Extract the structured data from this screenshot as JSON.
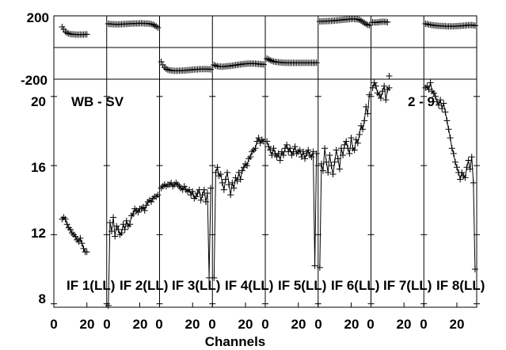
{
  "chart_data": {
    "type": "scatter",
    "title": "WB - SV",
    "annotation": "2 - 9",
    "xlabel": "Channels",
    "x_ticks": [
      "0",
      "20",
      "0",
      "20",
      "0",
      "20",
      "0",
      "20",
      "0",
      "20",
      "0",
      "20",
      "0",
      "20",
      "0",
      "20"
    ],
    "phase_panel": {
      "ylim": [
        -200,
        200
      ],
      "y_ticks": [
        "200",
        "-200"
      ]
    },
    "amp_panel": {
      "ylim": [
        7.8,
        21.0
      ],
      "y_ticks": [
        "20",
        "16",
        "12",
        "8"
      ]
    },
    "channels_per_if": 32,
    "ifs": [
      {
        "label": "IF 1(LL)",
        "start": 5,
        "phase": [
          130,
          115,
          100,
          92,
          88,
          85,
          84,
          83,
          82,
          82,
          82,
          82,
          82,
          82,
          83,
          83
        ],
        "amp": [
          12.9,
          13.0,
          12.9,
          12.6,
          12.4,
          12.3,
          12.1,
          12.0,
          11.9,
          11.7,
          11.6,
          11.8,
          11.5,
          11.2,
          11.0,
          11.0
        ]
      },
      {
        "label": "IF 2(LL)",
        "start": 1,
        "phase": [
          150,
          148,
          148,
          147,
          147,
          146,
          146,
          147,
          147,
          148,
          148,
          149,
          150,
          150,
          151,
          151,
          152,
          152,
          152,
          153,
          153,
          153,
          152,
          152,
          151,
          150,
          148,
          145,
          140,
          133,
          125
        ],
        "amp": [
          7.9,
          12.7,
          12.2,
          13.0,
          11.9,
          12.5,
          12.3,
          12.0,
          12.1,
          12.6,
          12.3,
          12.8,
          12.5,
          12.6,
          13.1,
          13.2,
          13.5,
          13.4,
          13.3,
          13.5,
          13.5,
          13.6,
          13.4,
          13.7,
          13.9,
          14.0,
          13.9,
          14.1,
          14.2,
          14.2,
          14.3
        ]
      },
      {
        "label": "IF 3(LL)",
        "start": 1,
        "phase": [
          -90,
          -110,
          -125,
          -135,
          -140,
          -143,
          -145,
          -146,
          -147,
          -147,
          -147,
          -146,
          -146,
          -145,
          -145,
          -144,
          -143,
          -142,
          -141,
          -140,
          -139,
          -138,
          -138,
          -137,
          -137,
          -136,
          -136,
          -136,
          -136,
          -137,
          -138
        ],
        "amp": [
          14.7,
          14.8,
          14.9,
          14.8,
          14.9,
          14.9,
          15.0,
          14.8,
          14.9,
          15.0,
          14.9,
          14.8,
          14.7,
          14.6,
          14.8,
          14.6,
          14.5,
          14.6,
          14.3,
          14.5,
          14.1,
          14.2,
          14.4,
          14.6,
          14.0,
          14.3,
          14.6,
          13.9,
          14.4,
          9.5,
          14.7
        ]
      },
      {
        "label": "IF 4(LL)",
        "start": 1,
        "phase": [
          -110,
          -115,
          -118,
          -120,
          -120,
          -121,
          -120,
          -119,
          -118,
          -117,
          -116,
          -114,
          -113,
          -111,
          -110,
          -108,
          -107,
          -105,
          -104,
          -103,
          -102,
          -101,
          -101,
          -101,
          -101,
          -102,
          -103,
          -104,
          -105,
          -106,
          -107
        ],
        "amp": [
          9.5,
          15.6,
          15.9,
          15.4,
          15.5,
          15.0,
          14.6,
          15.2,
          15.6,
          14.9,
          14.3,
          15.0,
          14.7,
          15.3,
          15.1,
          15.6,
          15.2,
          15.7,
          15.9,
          16.1,
          16.0,
          16.4,
          16.5,
          16.8,
          16.9,
          17.0,
          17.4,
          17.6,
          17.3,
          17.5,
          17.4
        ]
      },
      {
        "label": "IF 5(LL)",
        "start": 1,
        "phase": [
          -70,
          -75,
          -80,
          -85,
          -88,
          -90,
          -92,
          -93,
          -94,
          -95,
          -96,
          -96,
          -97,
          -97,
          -97,
          -97,
          -97,
          -97,
          -97,
          -97,
          -97,
          -97,
          -97,
          -97,
          -97,
          -97,
          -97,
          -97,
          -97,
          -97,
          -96
        ],
        "amp": [
          17.4,
          17.1,
          16.9,
          16.6,
          17.0,
          16.7,
          16.5,
          16.7,
          16.3,
          16.8,
          16.6,
          17.0,
          17.2,
          16.8,
          17.0,
          16.6,
          16.8,
          17.1,
          16.7,
          16.8,
          16.9,
          16.5,
          16.8,
          16.4,
          16.7,
          16.9,
          16.6,
          16.5,
          16.8,
          10.2,
          16.7
        ]
      },
      {
        "label": "IF 6(LL)",
        "start": 1,
        "phase": [
          165,
          165,
          166,
          166,
          167,
          167,
          168,
          168,
          169,
          170,
          171,
          172,
          173,
          174,
          175,
          176,
          177,
          178,
          179,
          180,
          181,
          180,
          179,
          178,
          175,
          170,
          162,
          155,
          148,
          143,
          140
        ],
        "amp": [
          10.1,
          16.1,
          15.7,
          17.0,
          16.2,
          15.6,
          16.6,
          16.0,
          15.5,
          16.2,
          16.9,
          16.4,
          15.8,
          17.0,
          16.6,
          17.2,
          17.4,
          17.0,
          16.7,
          17.6,
          17.0,
          16.9,
          17.5,
          17.3,
          17.8,
          18.3,
          18.1,
          18.6,
          19.4,
          19.0,
          20.1
        ]
      },
      {
        "label": "IF 7(LL)",
        "start": 1,
        "phase": [
          160,
          158,
          158,
          159,
          161,
          162,
          163,
          163,
          162,
          160,
          -180
        ],
        "amp": [
          20.5,
          20.8,
          20.6,
          20.2,
          20.1,
          19.9,
          20.3,
          20.6,
          19.8,
          20.4,
          20.5
        ]
      },
      {
        "label": "IF 8(LL)",
        "start": 1,
        "phase": [
          150,
          148,
          145,
          143,
          142,
          140,
          139,
          138,
          137,
          136,
          136,
          135,
          135,
          134,
          134,
          134,
          134,
          134,
          135,
          135,
          136,
          136,
          137,
          138,
          139,
          140,
          141,
          141,
          142,
          140,
          138
        ],
        "amp": [
          20.5,
          20.6,
          20.4,
          20.8,
          20.3,
          20.2,
          20.0,
          19.7,
          19.5,
          19.8,
          19.3,
          19.6,
          19.1,
          18.6,
          18.1,
          17.6,
          17.0,
          16.7,
          16.2,
          15.9,
          15.6,
          15.2,
          15.6,
          15.4,
          15.3,
          15.9,
          16.3,
          15.8,
          16.5,
          15.0,
          10.0
        ]
      }
    ]
  }
}
